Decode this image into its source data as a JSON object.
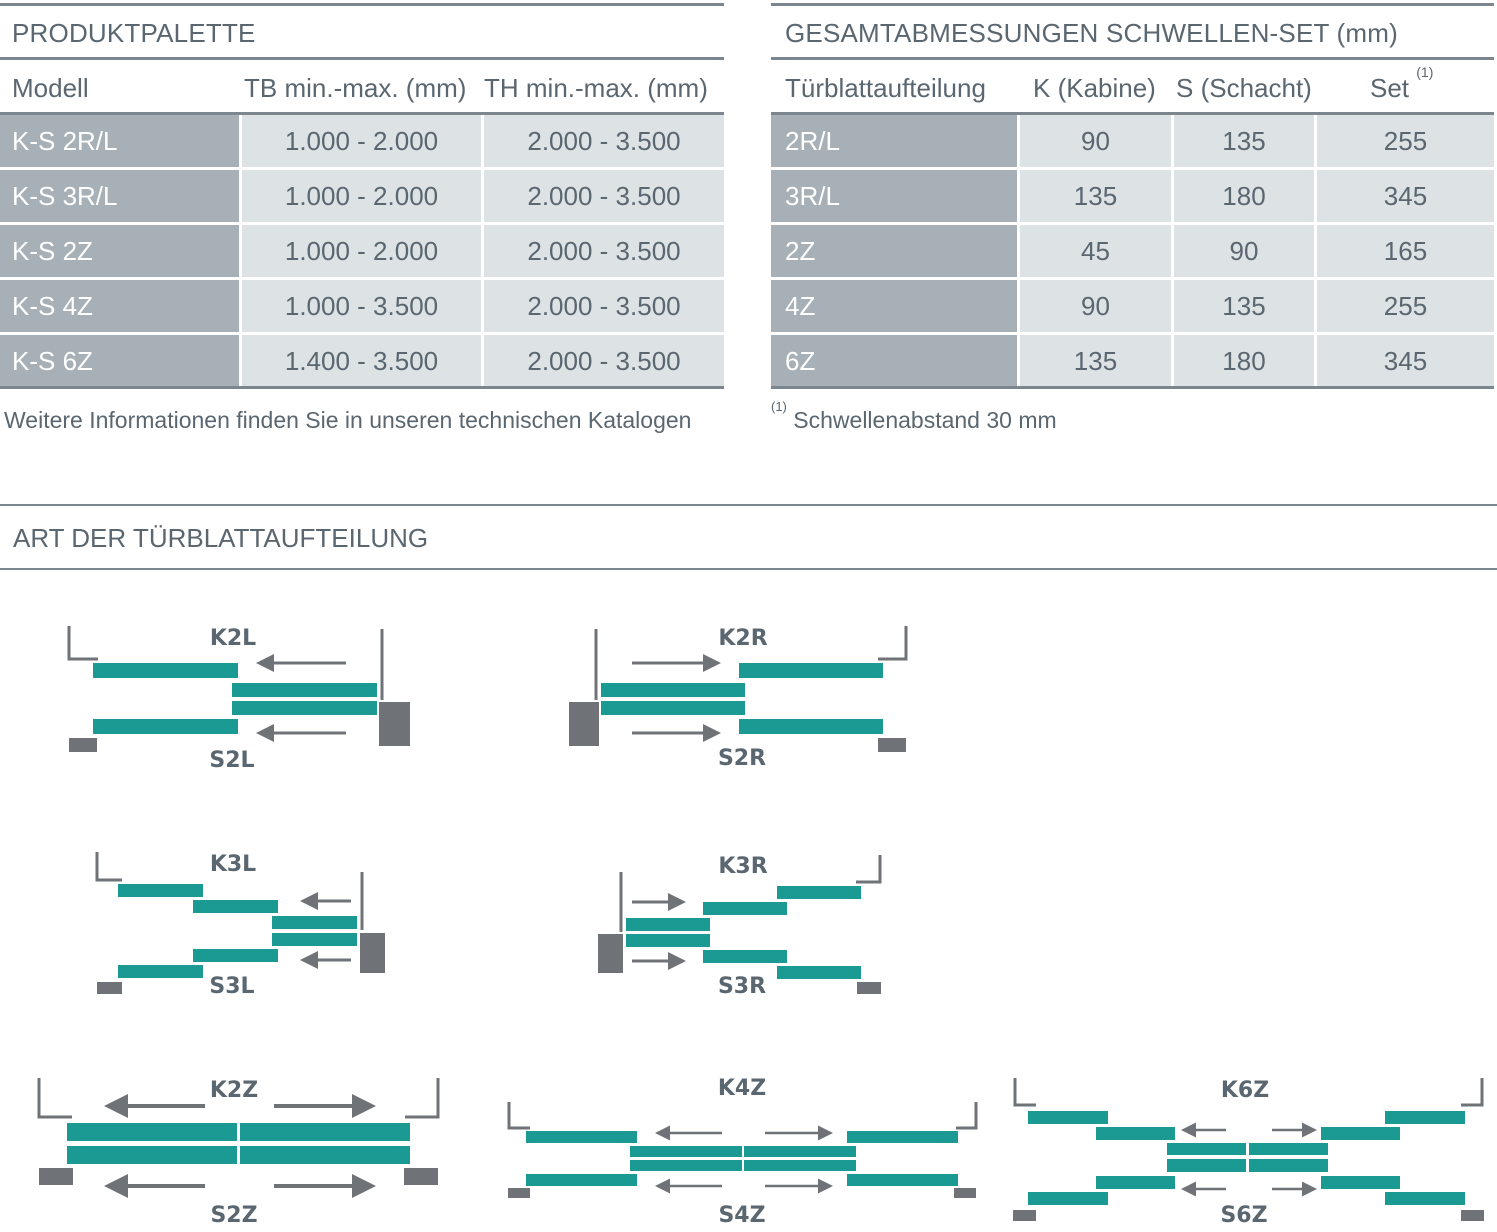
{
  "produktpalette": {
    "title": "PRODUKTPALETTE",
    "headers": [
      "Modell",
      "TB min.-max. (mm)",
      "TH min.-max. (mm)"
    ],
    "rows": [
      [
        "K-S 2R/L",
        "1.000 - 2.000",
        "2.000 - 3.500"
      ],
      [
        "K-S 3R/L",
        "1.000 - 2.000",
        "2.000 - 3.500"
      ],
      [
        "K-S 2Z",
        "1.000 - 2.000",
        "2.000 - 3.500"
      ],
      [
        "K-S 4Z",
        "1.000 - 3.500",
        "2.000 - 3.500"
      ],
      [
        "K-S 6Z",
        "1.400 - 3.500",
        "2.000 - 3.500"
      ]
    ],
    "note": "Weitere Informationen finden Sie in unseren technischen Katalogen"
  },
  "gesamtabmessungen": {
    "title": "GESAMTABMESSUNGEN SCHWELLEN-SET (mm)",
    "headers": [
      "Türblattaufteilung",
      "K (Kabine)",
      "S (Schacht)",
      "Set"
    ],
    "set_footnote_mark": "(1)",
    "rows": [
      [
        "2R/L",
        "90",
        "135",
        "255"
      ],
      [
        "3R/L",
        "135",
        "180",
        "345"
      ],
      [
        "2Z",
        "45",
        "90",
        "165"
      ],
      [
        "4Z",
        "90",
        "135",
        "255"
      ],
      [
        "6Z",
        "135",
        "180",
        "345"
      ]
    ],
    "footnote_mark": "(1)",
    "footnote": "Schwellenabstand 30 mm"
  },
  "art_der_tuerblattaufteilung": {
    "title": "ART DER TÜRBLATTAUFTEILUNG",
    "diagrams": [
      {
        "top": "K2L",
        "bottom": "S2L"
      },
      {
        "top": "K2R",
        "bottom": "S2R"
      },
      {
        "top": "K3L",
        "bottom": "S3L"
      },
      {
        "top": "K3R",
        "bottom": "S3R"
      },
      {
        "top": "K2Z",
        "bottom": "S2Z"
      },
      {
        "top": "K4Z",
        "bottom": "S4Z"
      },
      {
        "top": "K6Z",
        "bottom": "S6Z"
      }
    ]
  },
  "colors": {
    "panel": "#1a9a92",
    "arrow": "#6f7377",
    "frame": "#6f7377",
    "label": "#5a6670",
    "cell_first": "#a6b0b6",
    "cell_value": "#dde2e5",
    "rule": "#7c868e"
  }
}
